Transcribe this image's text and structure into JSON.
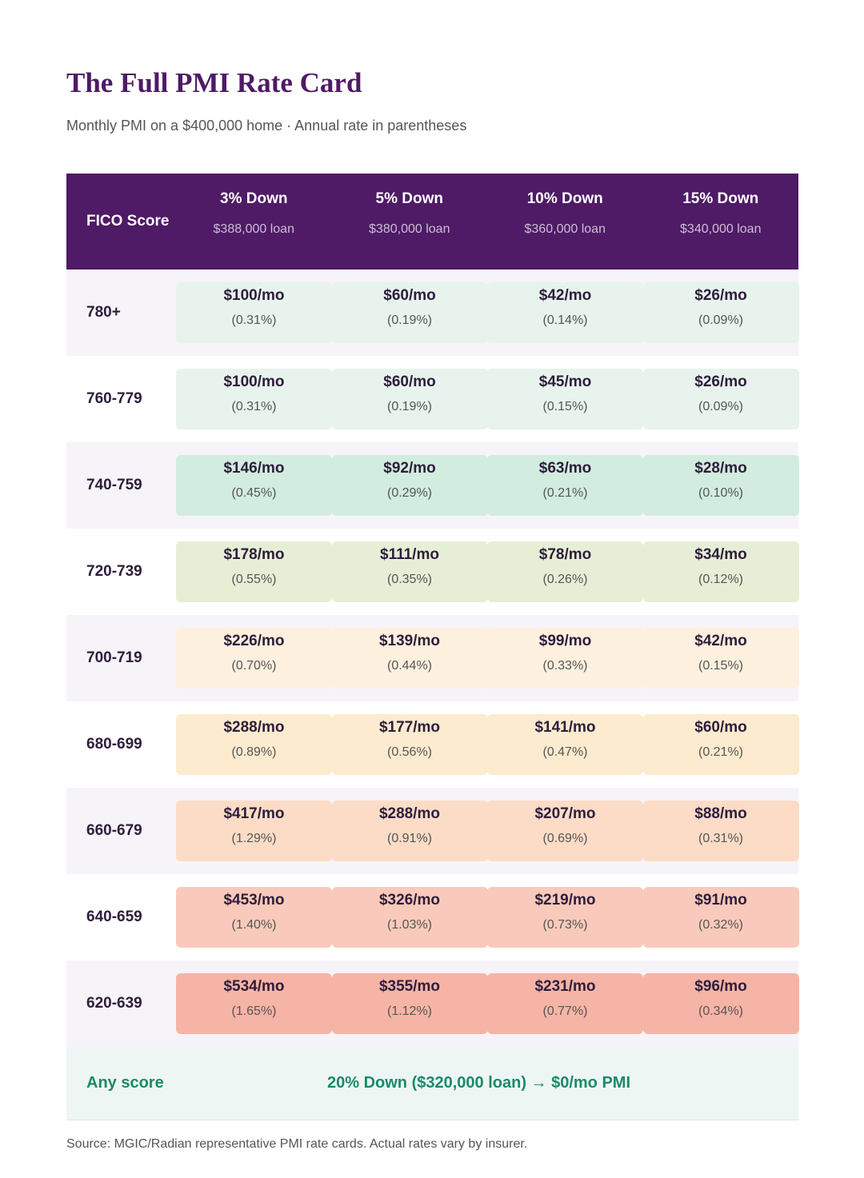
{
  "title": "The Full PMI Rate Card",
  "subtitle": "Monthly PMI on a $400,000 home · Annual rate in parentheses",
  "header": {
    "fico_label": "FICO Score",
    "columns": [
      {
        "label": "3% Down",
        "loan": "$388,000 loan"
      },
      {
        "label": "5% Down",
        "loan": "$380,000 loan"
      },
      {
        "label": "10% Down",
        "loan": "$360,000 loan"
      },
      {
        "label": "15% Down",
        "loan": "$340,000 loan"
      }
    ]
  },
  "rows": [
    {
      "fico": "780+",
      "bg": "#e7f3ec",
      "cells": [
        {
          "amount": "$100/mo",
          "rate": "(0.31%)"
        },
        {
          "amount": "$60/mo",
          "rate": "(0.19%)"
        },
        {
          "amount": "$42/mo",
          "rate": "(0.14%)"
        },
        {
          "amount": "$26/mo",
          "rate": "(0.09%)"
        }
      ]
    },
    {
      "fico": "760-779",
      "bg": "#e7f3ec",
      "cells": [
        {
          "amount": "$100/mo",
          "rate": "(0.31%)"
        },
        {
          "amount": "$60/mo",
          "rate": "(0.19%)"
        },
        {
          "amount": "$45/mo",
          "rate": "(0.15%)"
        },
        {
          "amount": "$26/mo",
          "rate": "(0.09%)"
        }
      ]
    },
    {
      "fico": "740-759",
      "bg": "#d2ecdf",
      "cells": [
        {
          "amount": "$146/mo",
          "rate": "(0.45%)"
        },
        {
          "amount": "$92/mo",
          "rate": "(0.29%)"
        },
        {
          "amount": "$63/mo",
          "rate": "(0.21%)"
        },
        {
          "amount": "$28/mo",
          "rate": "(0.10%)"
        }
      ]
    },
    {
      "fico": "720-739",
      "bg": "#e6efd6",
      "cells": [
        {
          "amount": "$178/mo",
          "rate": "(0.55%)"
        },
        {
          "amount": "$111/mo",
          "rate": "(0.35%)"
        },
        {
          "amount": "$78/mo",
          "rate": "(0.26%)"
        },
        {
          "amount": "$34/mo",
          "rate": "(0.12%)"
        }
      ]
    },
    {
      "fico": "700-719",
      "bg": "#fdf0df",
      "cells": [
        {
          "amount": "$226/mo",
          "rate": "(0.70%)"
        },
        {
          "amount": "$139/mo",
          "rate": "(0.44%)"
        },
        {
          "amount": "$99/mo",
          "rate": "(0.33%)"
        },
        {
          "amount": "$42/mo",
          "rate": "(0.15%)"
        }
      ]
    },
    {
      "fico": "680-699",
      "bg": "#fcebcf",
      "cells": [
        {
          "amount": "$288/mo",
          "rate": "(0.89%)"
        },
        {
          "amount": "$177/mo",
          "rate": "(0.56%)"
        },
        {
          "amount": "$141/mo",
          "rate": "(0.47%)"
        },
        {
          "amount": "$60/mo",
          "rate": "(0.21%)"
        }
      ]
    },
    {
      "fico": "660-679",
      "bg": "#fcdcc6",
      "cells": [
        {
          "amount": "$417/mo",
          "rate": "(1.29%)"
        },
        {
          "amount": "$288/mo",
          "rate": "(0.91%)"
        },
        {
          "amount": "$207/mo",
          "rate": "(0.69%)"
        },
        {
          "amount": "$88/mo",
          "rate": "(0.31%)"
        }
      ]
    },
    {
      "fico": "640-659",
      "bg": "#f9cabb",
      "cells": [
        {
          "amount": "$453/mo",
          "rate": "(1.40%)"
        },
        {
          "amount": "$326/mo",
          "rate": "(1.03%)"
        },
        {
          "amount": "$219/mo",
          "rate": "(0.73%)"
        },
        {
          "amount": "$91/mo",
          "rate": "(0.32%)"
        }
      ]
    },
    {
      "fico": "620-639",
      "bg": "#f6b4a6",
      "cells": [
        {
          "amount": "$534/mo",
          "rate": "(1.65%)"
        },
        {
          "amount": "$355/mo",
          "rate": "(1.12%)"
        },
        {
          "amount": "$231/mo",
          "rate": "(0.77%)"
        },
        {
          "amount": "$96/mo",
          "rate": "(0.34%)"
        }
      ]
    }
  ],
  "footer_row": {
    "label": "Any score",
    "note": "20% Down ($320,000 loan) → $0/mo PMI"
  },
  "source": "Source: MGIC/Radian representative PMI rate cards. Actual rates vary by insurer.",
  "colors": {
    "header_bg": "#4f1a66",
    "title": "#4f1a66",
    "footer_accent": "#1a8a6a"
  }
}
